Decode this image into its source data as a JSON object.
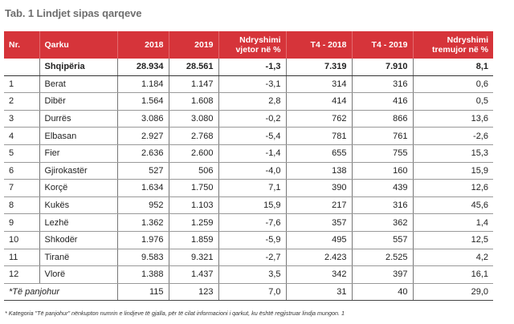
{
  "title": "Tab. 1 Lindjet sipas qarqeve",
  "headers": [
    "Nr.",
    "Qarku",
    "2018",
    "2019",
    "Ndryshimi vjetor në %",
    "T4 - 2018",
    "T4 - 2019",
    "Ndryshimi tremujor në %"
  ],
  "total": {
    "nr": "",
    "name": "Shqipëria",
    "y2018": "28.934",
    "y2019": "28.561",
    "annual": "-1,3",
    "t4_2018": "7.319",
    "t4_2019": "7.910",
    "quarterly": "8,1"
  },
  "rows": [
    {
      "nr": "1",
      "name": "Berat",
      "y2018": "1.184",
      "y2019": "1.147",
      "annual": "-3,1",
      "t4_2018": "314",
      "t4_2019": "316",
      "quarterly": "0,6"
    },
    {
      "nr": "2",
      "name": "Dibër",
      "y2018": "1.564",
      "y2019": "1.608",
      "annual": "2,8",
      "t4_2018": "414",
      "t4_2019": "416",
      "quarterly": "0,5"
    },
    {
      "nr": "3",
      "name": "Durrës",
      "y2018": "3.086",
      "y2019": "3.080",
      "annual": "-0,2",
      "t4_2018": "762",
      "t4_2019": "866",
      "quarterly": "13,6"
    },
    {
      "nr": "4",
      "name": "Elbasan",
      "y2018": "2.927",
      "y2019": "2.768",
      "annual": "-5,4",
      "t4_2018": "781",
      "t4_2019": "761",
      "quarterly": "-2,6"
    },
    {
      "nr": "5",
      "name": "Fier",
      "y2018": "2.636",
      "y2019": "2.600",
      "annual": "-1,4",
      "t4_2018": "655",
      "t4_2019": "755",
      "quarterly": "15,3"
    },
    {
      "nr": "6",
      "name": "Gjirokastër",
      "y2018": "527",
      "y2019": "506",
      "annual": "-4,0",
      "t4_2018": "138",
      "t4_2019": "160",
      "quarterly": "15,9"
    },
    {
      "nr": "7",
      "name": "Korçë",
      "y2018": "1.634",
      "y2019": "1.750",
      "annual": "7,1",
      "t4_2018": "390",
      "t4_2019": "439",
      "quarterly": "12,6"
    },
    {
      "nr": "8",
      "name": "Kukës",
      "y2018": "952",
      "y2019": "1.103",
      "annual": "15,9",
      "t4_2018": "217",
      "t4_2019": "316",
      "quarterly": "45,6"
    },
    {
      "nr": "9",
      "name": "Lezhë",
      "y2018": "1.362",
      "y2019": "1.259",
      "annual": "-7,6",
      "t4_2018": "357",
      "t4_2019": "362",
      "quarterly": "1,4"
    },
    {
      "nr": "10",
      "name": "Shkodër",
      "y2018": "1.976",
      "y2019": "1.859",
      "annual": "-5,9",
      "t4_2018": "495",
      "t4_2019": "557",
      "quarterly": "12,5"
    },
    {
      "nr": "11",
      "name": "Tiranë",
      "y2018": "9.583",
      "y2019": "9.321",
      "annual": "-2,7",
      "t4_2018": "2.423",
      "t4_2019": "2.525",
      "quarterly": "4,2"
    },
    {
      "nr": "12",
      "name": "Vlorë",
      "y2018": "1.388",
      "y2019": "1.437",
      "annual": "3,5",
      "t4_2018": "342",
      "t4_2019": "397",
      "quarterly": "16,1"
    }
  ],
  "unknown": {
    "nr": "*Të panjohur",
    "name": "",
    "y2018": "115",
    "y2019": "123",
    "annual": "7,0",
    "t4_2018": "31",
    "t4_2019": "40",
    "quarterly": "29,0"
  },
  "footnote": "* Kategoria \"Të panjohur\" nënkupton numrin e lindjeve të gjalla, për të cilat informacioni i qarkut, ku është regjistruar lindja mungon. 1",
  "colors": {
    "header_bg": "#d6343a",
    "title": "#6e6e6e"
  }
}
